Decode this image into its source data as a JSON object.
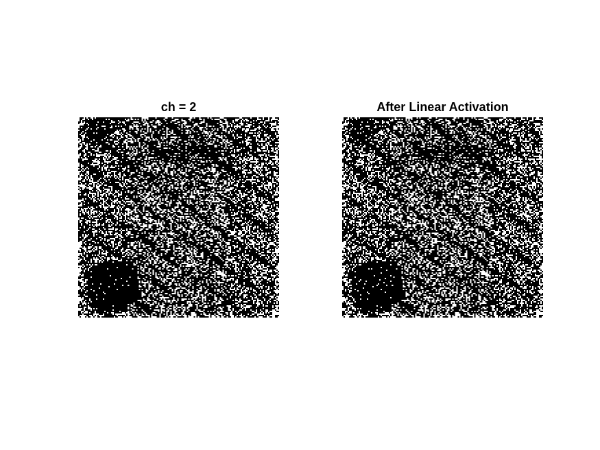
{
  "panels": [
    {
      "title": "ch = 2"
    },
    {
      "title": "After Linear Activation"
    }
  ],
  "image_style": {
    "foreground": "#ffffff",
    "background": "#000000",
    "colormap": "binary"
  }
}
